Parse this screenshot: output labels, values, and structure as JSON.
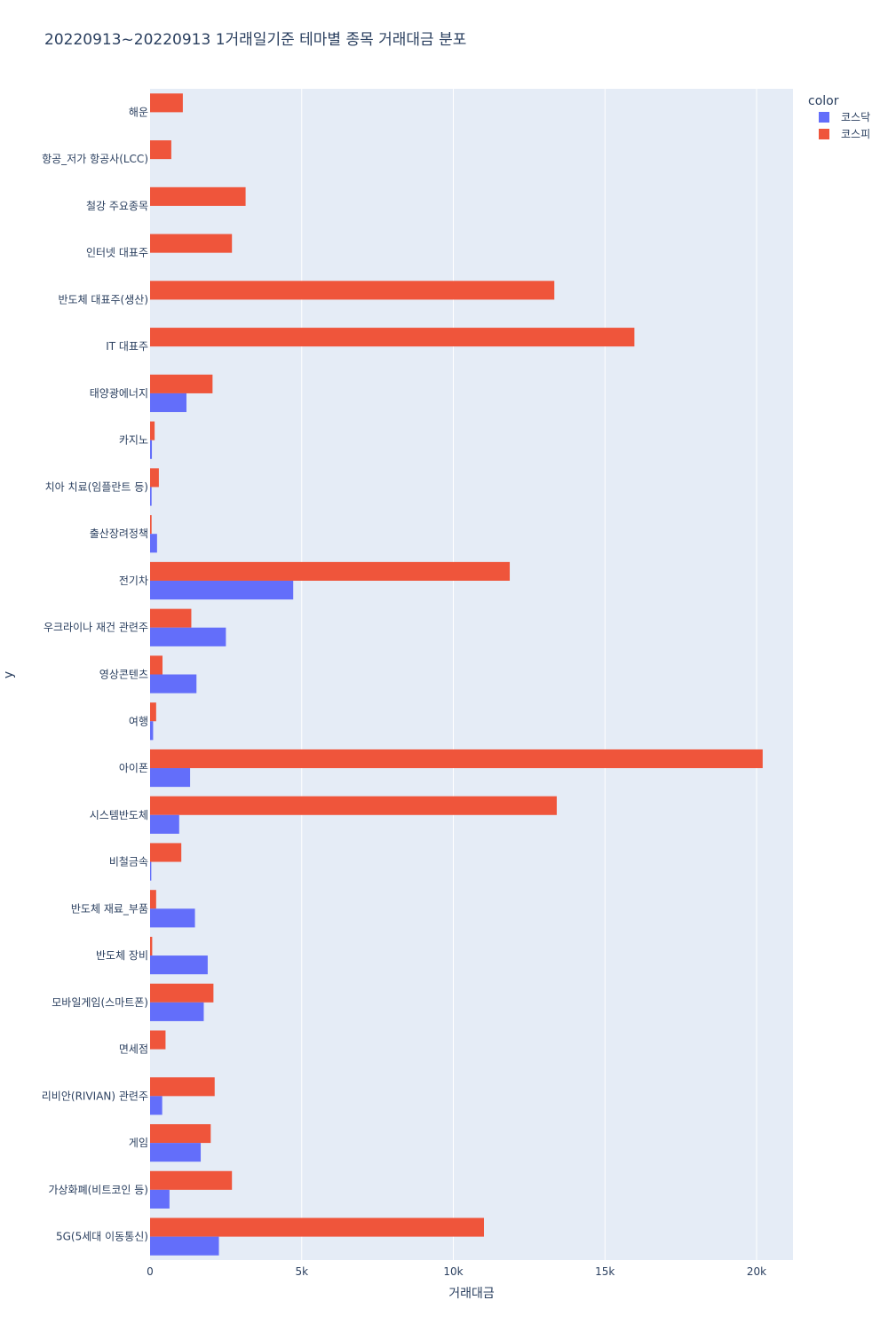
{
  "chart_data": {
    "type": "bar",
    "orientation": "horizontal",
    "title": "20220913~20220913 1거래일기준 테마별 종목 거래대금 분포",
    "xlabel": "거래대금",
    "ylabel": "y",
    "xlim": [
      0,
      21200
    ],
    "xticks": [
      0,
      5000,
      10000,
      15000,
      20000
    ],
    "xtick_labels": [
      "0",
      "5k",
      "10k",
      "15k",
      "20k"
    ],
    "grid": true,
    "legend": {
      "title": "color",
      "position": "top-right"
    },
    "categories": [
      "해운",
      "항공_저가 항공사(LCC)",
      "철강 주요종목",
      "인터넷 대표주",
      "반도체 대표주(생산)",
      "IT 대표주",
      "태양광에너지",
      "카지노",
      "치아 치료(임플란트 등)",
      "출산장려정책",
      "전기차",
      "우크라이나 재건 관련주",
      "영상콘텐츠",
      "여행",
      "아이폰",
      "시스템반도체",
      "비철금속",
      "반도체 재료_부품",
      "반도체 장비",
      "모바일게임(스마트폰)",
      "면세점",
      "리비안(RIVIAN) 관련주",
      "게임",
      "가상화폐(비트코인 등)",
      "5G(5세대 이동통신)"
    ],
    "series": [
      {
        "name": "코스닥",
        "color": "#636efa",
        "values": [
          0,
          0,
          0,
          0,
          0,
          0,
          1200,
          60,
          50,
          230,
          4720,
          2500,
          1530,
          100,
          1320,
          960,
          40,
          1480,
          1900,
          1770,
          0,
          400,
          1670,
          640,
          2270
        ]
      },
      {
        "name": "코스피",
        "color": "#ef553b",
        "values": [
          1080,
          700,
          3150,
          2700,
          13330,
          15970,
          2060,
          150,
          290,
          50,
          11860,
          1360,
          410,
          200,
          20200,
          13410,
          1030,
          200,
          70,
          2090,
          510,
          2130,
          2000,
          2700,
          11010
        ]
      }
    ]
  }
}
